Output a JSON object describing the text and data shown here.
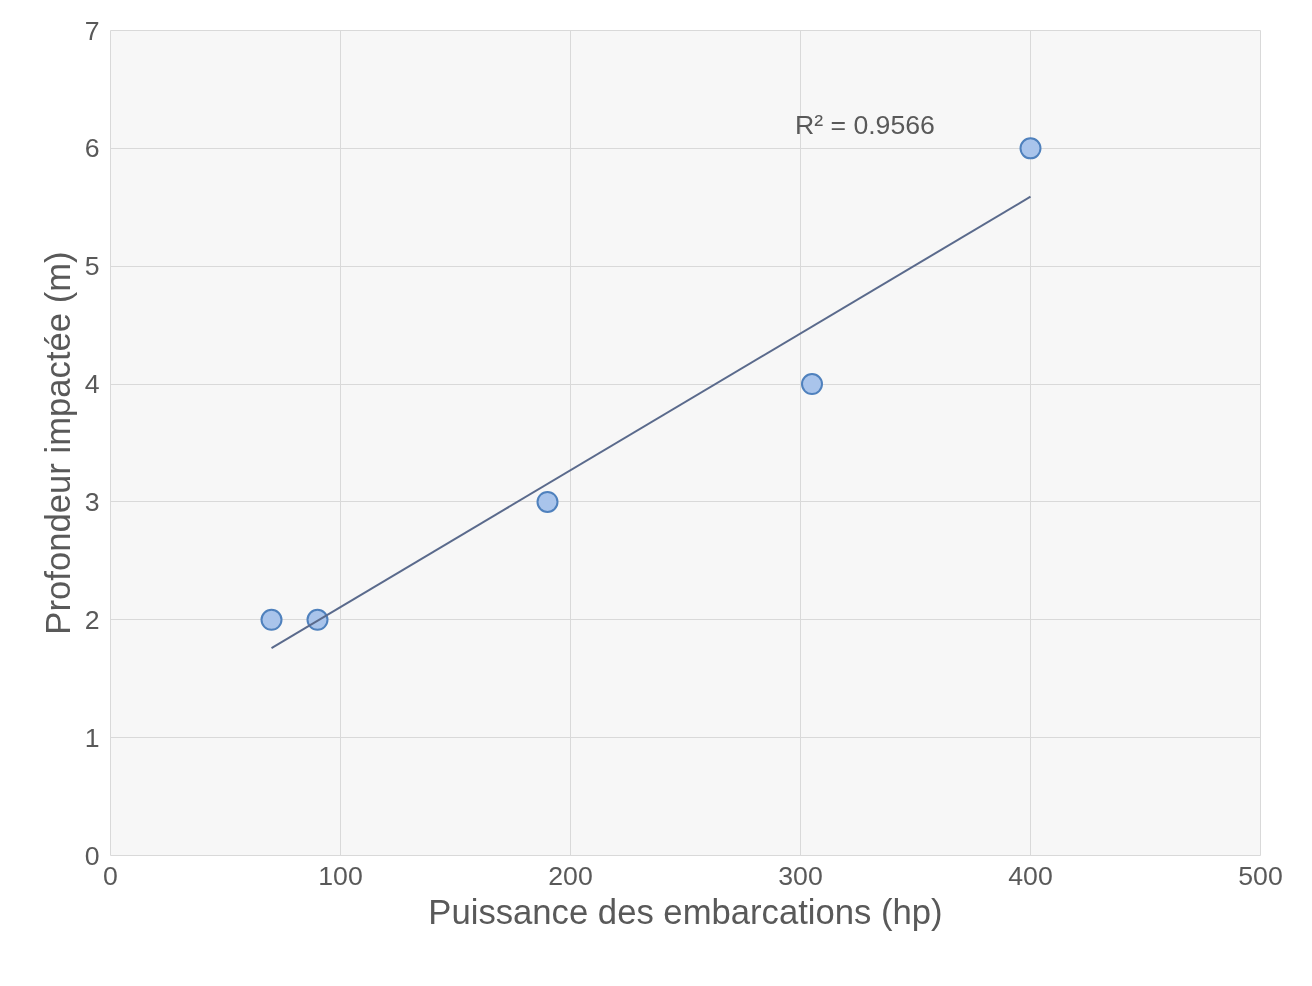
{
  "chart_data": {
    "type": "scatter",
    "xlabel": "Puissance des embarcations (hp)",
    "ylabel": "Profondeur impactée (m)",
    "series": [
      {
        "color": "#a9c4eb",
        "x": [
          70,
          90,
          190,
          305,
          400
        ],
        "values": [
          2,
          2,
          3,
          4,
          6
        ]
      },
      {
        "type": "line",
        "marker": "none",
        "color": "#5a6a8c",
        "x": [
          70,
          400
        ],
        "values": [
          1.76,
          5.59
        ]
      }
    ],
    "annotations": [
      "R² = 0.9566"
    ],
    "xlim": [
      0,
      500
    ],
    "xticks": [
      0,
      100,
      200,
      300,
      400,
      500
    ],
    "ylim": [
      0,
      7
    ],
    "yticks": [
      0,
      1,
      2,
      3,
      4,
      5,
      6,
      7
    ],
    "grid": true,
    "marker": "circle",
    "line_style": "solid"
  }
}
